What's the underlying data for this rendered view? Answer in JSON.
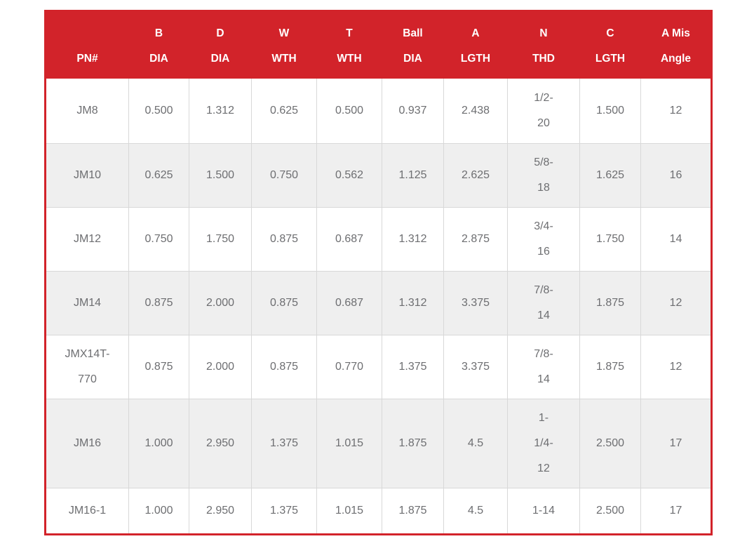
{
  "colors": {
    "accent_red": "#d2232a",
    "row_alt_gray": "#efefef",
    "grid_gray": "#d8d8d8",
    "body_text_gray": "#6d6e71",
    "header_text": "#ffffff"
  },
  "chart_data": {
    "type": "table",
    "title": "",
    "columns": [
      "PN#",
      "B DIA",
      "D DIA",
      "W WTH",
      "T WTH",
      "Ball DIA",
      "A LGTH",
      "N THD",
      "C LGTH",
      "A Mis Angle"
    ],
    "rows": [
      [
        "JM8",
        "0.500",
        "1.312",
        "0.625",
        "0.500",
        "0.937",
        "2.438",
        "1/2-20",
        "1.500",
        "12"
      ],
      [
        "JM10",
        "0.625",
        "1.500",
        "0.750",
        "0.562",
        "1.125",
        "2.625",
        "5/8-18",
        "1.625",
        "16"
      ],
      [
        "JM12",
        "0.750",
        "1.750",
        "0.875",
        "0.687",
        "1.312",
        "2.875",
        "3/4-16",
        "1.750",
        "14"
      ],
      [
        "JM14",
        "0.875",
        "2.000",
        "0.875",
        "0.687",
        "1.312",
        "3.375",
        "7/8-14",
        "1.875",
        "12"
      ],
      [
        "JMX14T-770",
        "0.875",
        "2.000",
        "0.875",
        "0.770",
        "1.375",
        "3.375",
        "7/8-14",
        "1.875",
        "12"
      ],
      [
        "JM16",
        "1.000",
        "2.950",
        "1.375",
        "1.015",
        "1.875",
        "4.5",
        "1-1/4-12",
        "2.500",
        "17"
      ],
      [
        "JM16-1",
        "1.000",
        "2.950",
        "1.375",
        "1.015",
        "1.875",
        "4.5",
        "1-14",
        "2.500",
        "17"
      ]
    ]
  },
  "table": {
    "header": {
      "labels": [
        "PN#",
        "B\nDIA",
        "D\nDIA",
        "W\nWTH",
        "T\nWTH",
        "Ball\nDIA",
        "A\nLGTH",
        "N\nTHD",
        "C\nLGTH",
        "A Mis\nAngle"
      ]
    },
    "rows": [
      {
        "cells": [
          "JM8",
          "0.500",
          "1.312",
          "0.625",
          "0.500",
          "0.937",
          "2.438",
          "1/2-\n20",
          "1.500",
          "12"
        ]
      },
      {
        "cells": [
          "JM10",
          "0.625",
          "1.500",
          "0.750",
          "0.562",
          "1.125",
          "2.625",
          "5/8-\n18",
          "1.625",
          "16"
        ]
      },
      {
        "cells": [
          "JM12",
          "0.750",
          "1.750",
          "0.875",
          "0.687",
          "1.312",
          "2.875",
          "3/4-\n16",
          "1.750",
          "14"
        ]
      },
      {
        "cells": [
          "JM14",
          "0.875",
          "2.000",
          "0.875",
          "0.687",
          "1.312",
          "3.375",
          "7/8-\n14",
          "1.875",
          "12"
        ]
      },
      {
        "cells": [
          "JMX14T-\n770",
          "0.875",
          "2.000",
          "0.875",
          "0.770",
          "1.375",
          "3.375",
          "7/8-\n14",
          "1.875",
          "12"
        ]
      },
      {
        "cells": [
          "JM16",
          "1.000",
          "2.950",
          "1.375",
          "1.015",
          "1.875",
          "4.5",
          "1-\n1/4-\n12",
          "2.500",
          "17"
        ]
      },
      {
        "cells": [
          "JM16-1",
          "1.000",
          "2.950",
          "1.375",
          "1.015",
          "1.875",
          "4.5",
          "1-14",
          "2.500",
          "17"
        ]
      }
    ]
  }
}
